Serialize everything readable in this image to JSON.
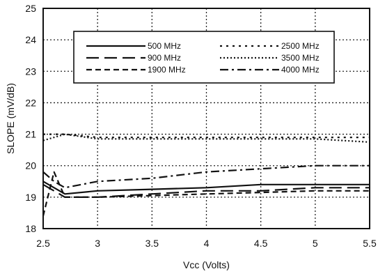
{
  "chart_data": {
    "type": "line",
    "title": "",
    "xlabel": "Vcc (Volts)",
    "ylabel": "SLOPE (mV/dB)",
    "xlim": [
      2.5,
      5.5
    ],
    "ylim": [
      18,
      25
    ],
    "xticks": [
      2.5,
      3,
      3.5,
      4,
      4.5,
      5,
      5.5
    ],
    "xtick_labels": [
      "2.5",
      "3",
      "3.5",
      "4",
      "4.5",
      "5",
      "5.5"
    ],
    "yticks": [
      18,
      19,
      20,
      21,
      22,
      23,
      24,
      25
    ],
    "ytick_labels": [
      "18",
      "19",
      "20",
      "21",
      "22",
      "23",
      "24",
      "25"
    ],
    "grid": true,
    "legend_position": "top-center",
    "series": [
      {
        "name": "500 MHz",
        "dash": "solid",
        "color": "#111111",
        "x": [
          2.5,
          2.7,
          3,
          3.5,
          4,
          4.5,
          5,
          5.5
        ],
        "y": [
          19.5,
          19.1,
          19.2,
          19.25,
          19.3,
          19.4,
          19.4,
          19.4
        ]
      },
      {
        "name": "900 MHz",
        "dash": "long-dash",
        "color": "#111111",
        "x": [
          2.5,
          2.7,
          3,
          3.5,
          4,
          4.5,
          5,
          5.5
        ],
        "y": [
          19.4,
          19.0,
          19.0,
          19.1,
          19.2,
          19.2,
          19.3,
          19.3
        ]
      },
      {
        "name": "1900 MHz",
        "dash": "dash",
        "color": "#111111",
        "x": [
          2.5,
          2.6,
          2.7,
          3,
          3.5,
          4,
          4.5,
          5,
          5.5
        ],
        "y": [
          18.4,
          19.8,
          19.0,
          19.0,
          19.05,
          19.1,
          19.15,
          19.2,
          19.2
        ]
      },
      {
        "name": "2500 MHz",
        "dash": "dot",
        "color": "#111111",
        "x": [
          2.5,
          2.7,
          3,
          3.5,
          4,
          4.5,
          5,
          5.5
        ],
        "y": [
          21.0,
          21.0,
          20.9,
          20.9,
          20.9,
          20.9,
          20.9,
          20.9
        ]
      },
      {
        "name": "3500 MHz",
        "dash": "fine-dot",
        "color": "#111111",
        "x": [
          2.5,
          2.7,
          3,
          3.5,
          4,
          4.5,
          5,
          5.5
        ],
        "y": [
          20.8,
          21.0,
          20.85,
          20.85,
          20.85,
          20.85,
          20.85,
          20.75
        ]
      },
      {
        "name": "4000 MHz",
        "dash": "dash-dot",
        "color": "#111111",
        "x": [
          2.5,
          2.6,
          2.7,
          3,
          3.5,
          4,
          4.5,
          5,
          5.5
        ],
        "y": [
          19.8,
          19.5,
          19.3,
          19.5,
          19.6,
          19.8,
          19.9,
          20.0,
          20.0
        ]
      }
    ]
  }
}
